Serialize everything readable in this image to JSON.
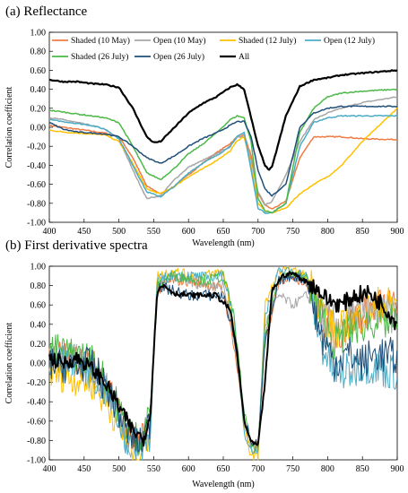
{
  "chart_data": [
    {
      "type": "line",
      "title": "(a) Reflectance",
      "xlabel": "Wavelength  (nm)",
      "ylabel": "Correlation coefficient",
      "xlim": [
        400,
        900
      ],
      "ylim": [
        -1.0,
        1.0
      ],
      "xticks": [
        "400",
        "450",
        "500",
        "550",
        "600",
        "650",
        "700",
        "750",
        "800",
        "850",
        "900"
      ],
      "yticks": [
        "1.00",
        "0.80",
        "0.60",
        "0.40",
        "0.20",
        "0.00",
        "-0.20",
        "-0.40",
        "-0.60",
        "-0.80",
        "-1.00"
      ],
      "legend_position": "top",
      "grid": false,
      "series": [
        {
          "name": "Shaded (10 May)",
          "color": "#f07b42",
          "width": 1.5,
          "x": [
            400,
            420,
            440,
            460,
            480,
            500,
            520,
            540,
            560,
            580,
            600,
            620,
            640,
            660,
            670,
            680,
            690,
            700,
            710,
            720,
            740,
            760,
            780,
            800,
            820,
            850,
            900
          ],
          "y": [
            0.02,
            0.0,
            -0.02,
            -0.04,
            -0.06,
            -0.1,
            -0.32,
            -0.62,
            -0.7,
            -0.62,
            -0.5,
            -0.38,
            -0.27,
            -0.17,
            -0.1,
            -0.08,
            -0.3,
            -0.7,
            -0.82,
            -0.86,
            -0.78,
            -0.32,
            -0.1,
            -0.1,
            -0.1,
            -0.12,
            -0.13
          ]
        },
        {
          "name": "Open (10 May)",
          "color": "#a6a6a6",
          "width": 1.5,
          "x": [
            400,
            420,
            440,
            460,
            480,
            500,
            520,
            540,
            560,
            580,
            600,
            620,
            640,
            660,
            670,
            680,
            690,
            700,
            710,
            720,
            740,
            760,
            780,
            800,
            820,
            850,
            900
          ],
          "y": [
            0.1,
            0.08,
            0.05,
            0.02,
            -0.02,
            -0.12,
            -0.45,
            -0.75,
            -0.72,
            -0.55,
            -0.42,
            -0.35,
            -0.28,
            -0.2,
            -0.1,
            -0.1,
            -0.35,
            -0.68,
            -0.82,
            -0.78,
            -0.5,
            -0.15,
            0.08,
            0.15,
            0.2,
            0.26,
            0.32
          ]
        },
        {
          "name": "Shaded (12 July)",
          "color": "#ffc000",
          "width": 1.5,
          "x": [
            400,
            420,
            440,
            460,
            480,
            500,
            520,
            540,
            560,
            580,
            600,
            620,
            640,
            660,
            670,
            680,
            690,
            700,
            710,
            720,
            740,
            760,
            780,
            800,
            820,
            850,
            900
          ],
          "y": [
            -0.03,
            -0.05,
            -0.06,
            -0.07,
            -0.08,
            -0.15,
            -0.38,
            -0.65,
            -0.7,
            -0.62,
            -0.52,
            -0.44,
            -0.35,
            -0.25,
            -0.14,
            -0.1,
            -0.4,
            -0.8,
            -0.88,
            -0.9,
            -0.85,
            -0.7,
            -0.6,
            -0.52,
            -0.4,
            -0.15,
            0.2
          ]
        },
        {
          "name": "Open (12 July)",
          "color": "#4bacc6",
          "width": 1.5,
          "x": [
            400,
            420,
            440,
            460,
            480,
            500,
            520,
            540,
            560,
            580,
            600,
            620,
            640,
            660,
            670,
            680,
            690,
            700,
            710,
            720,
            740,
            760,
            780,
            800,
            820,
            850,
            900
          ],
          "y": [
            0.08,
            0.06,
            0.04,
            0.02,
            -0.02,
            -0.12,
            -0.4,
            -0.68,
            -0.73,
            -0.62,
            -0.48,
            -0.38,
            -0.3,
            -0.2,
            -0.1,
            -0.05,
            -0.45,
            -0.85,
            -0.9,
            -0.9,
            -0.8,
            -0.2,
            0.05,
            0.1,
            0.12,
            0.12,
            0.12
          ]
        },
        {
          "name": "Shaded (26 July)",
          "color": "#4cb848",
          "width": 1.5,
          "x": [
            400,
            420,
            440,
            460,
            480,
            500,
            520,
            540,
            560,
            580,
            600,
            620,
            640,
            660,
            670,
            680,
            690,
            700,
            710,
            720,
            740,
            760,
            780,
            800,
            820,
            850,
            900
          ],
          "y": [
            0.18,
            0.16,
            0.14,
            0.12,
            0.1,
            0.05,
            -0.2,
            -0.48,
            -0.55,
            -0.43,
            -0.28,
            -0.18,
            -0.06,
            0.08,
            0.12,
            0.1,
            -0.15,
            -0.75,
            -0.88,
            -0.9,
            -0.8,
            -0.05,
            0.2,
            0.32,
            0.36,
            0.38,
            0.4
          ]
        },
        {
          "name": "Open (26 July)",
          "color": "#1f4e79",
          "width": 1.5,
          "x": [
            400,
            420,
            440,
            460,
            480,
            500,
            520,
            540,
            560,
            580,
            600,
            620,
            640,
            660,
            670,
            680,
            690,
            700,
            710,
            720,
            740,
            760,
            780,
            800,
            820,
            850,
            900
          ],
          "y": [
            0.05,
            -0.02,
            -0.05,
            -0.06,
            -0.07,
            -0.1,
            -0.2,
            -0.32,
            -0.38,
            -0.3,
            -0.2,
            -0.12,
            -0.06,
            0.02,
            0.06,
            0.06,
            -0.1,
            -0.45,
            -0.65,
            -0.72,
            -0.6,
            0.0,
            0.15,
            0.2,
            0.22,
            0.22,
            0.22
          ]
        },
        {
          "name": "All",
          "color": "#000000",
          "width": 2.2,
          "x": [
            400,
            420,
            440,
            460,
            480,
            500,
            520,
            540,
            550,
            560,
            580,
            600,
            620,
            640,
            660,
            670,
            680,
            690,
            700,
            710,
            715,
            720,
            740,
            760,
            780,
            800,
            820,
            850,
            900
          ],
          "y": [
            0.5,
            0.48,
            0.48,
            0.46,
            0.45,
            0.42,
            0.2,
            -0.1,
            -0.16,
            -0.15,
            0.0,
            0.15,
            0.25,
            0.32,
            0.42,
            0.45,
            0.4,
            0.1,
            -0.2,
            -0.4,
            -0.45,
            -0.42,
            0.12,
            0.43,
            0.5,
            0.52,
            0.55,
            0.57,
            0.6
          ]
        }
      ]
    },
    {
      "type": "line",
      "title": "(b) First derivative spectra",
      "xlabel": "Wavelength  (nm)",
      "ylabel": "Correlation  coefficient",
      "xlim": [
        400,
        900
      ],
      "ylim": [
        -1.0,
        1.0
      ],
      "xticks": [
        "400",
        "450",
        "500",
        "550",
        "600",
        "650",
        "700",
        "750",
        "800",
        "850",
        "900"
      ],
      "yticks": [
        "1.00",
        "0.80",
        "0.60",
        "0.40",
        "0.20",
        "0.00",
        "-0.20",
        "-0.40",
        "-0.60",
        "-0.80",
        "-1.00"
      ],
      "grid": false,
      "series": [
        {
          "color": "#f07b42",
          "width": 1.0,
          "x": [
            400,
            430,
            460,
            490,
            510,
            530,
            545,
            555,
            575,
            600,
            625,
            650,
            665,
            680,
            690,
            700,
            710,
            730,
            750,
            770,
            790,
            810,
            830,
            850,
            870,
            900
          ],
          "y": [
            0.1,
            0.05,
            0.0,
            -0.3,
            -0.7,
            -0.85,
            -0.6,
            0.75,
            0.85,
            0.85,
            0.82,
            0.75,
            0.2,
            -0.6,
            -0.85,
            -0.85,
            0.2,
            0.85,
            0.9,
            0.8,
            0.5,
            0.3,
            0.4,
            0.5,
            0.6,
            0.55
          ]
        },
        {
          "color": "#a6a6a6",
          "width": 1.0,
          "x": [
            400,
            430,
            460,
            490,
            510,
            530,
            545,
            555,
            575,
            600,
            625,
            650,
            665,
            680,
            690,
            700,
            710,
            730,
            750,
            770,
            790,
            810,
            830,
            850,
            870,
            900
          ],
          "y": [
            0.0,
            0.05,
            -0.05,
            -0.35,
            -0.75,
            -0.9,
            -0.5,
            0.8,
            0.9,
            0.85,
            0.8,
            0.8,
            0.3,
            -0.6,
            -0.9,
            -0.9,
            0.4,
            0.7,
            0.6,
            0.7,
            0.5,
            0.4,
            0.45,
            0.55,
            0.5,
            0.5
          ]
        },
        {
          "color": "#ffc000",
          "width": 1.0,
          "x": [
            400,
            430,
            460,
            490,
            510,
            530,
            545,
            555,
            575,
            600,
            625,
            650,
            665,
            680,
            690,
            700,
            710,
            730,
            750,
            770,
            790,
            810,
            830,
            850,
            870,
            900
          ],
          "y": [
            -0.1,
            -0.15,
            -0.2,
            -0.5,
            -0.8,
            -0.95,
            -0.7,
            0.9,
            0.95,
            0.9,
            0.9,
            0.95,
            0.4,
            -0.7,
            -0.95,
            -0.97,
            0.6,
            0.95,
            0.95,
            0.9,
            0.6,
            0.3,
            0.4,
            0.5,
            0.6,
            0.6
          ]
        },
        {
          "color": "#4bacc6",
          "width": 1.0,
          "x": [
            400,
            430,
            460,
            490,
            510,
            530,
            545,
            555,
            575,
            600,
            625,
            650,
            665,
            680,
            690,
            700,
            710,
            730,
            750,
            770,
            790,
            810,
            830,
            850,
            870,
            900
          ],
          "y": [
            -0.05,
            0.05,
            -0.1,
            -0.4,
            -0.8,
            -0.9,
            -0.75,
            0.85,
            0.9,
            0.9,
            0.88,
            0.9,
            0.5,
            -0.7,
            -0.9,
            -0.9,
            0.5,
            0.95,
            0.95,
            0.9,
            0.2,
            -0.1,
            -0.1,
            0.0,
            -0.05,
            -0.1
          ]
        },
        {
          "color": "#4cb848",
          "width": 1.0,
          "x": [
            400,
            430,
            460,
            490,
            510,
            530,
            545,
            555,
            575,
            600,
            625,
            650,
            665,
            680,
            690,
            700,
            710,
            730,
            750,
            770,
            790,
            810,
            830,
            850,
            870,
            900
          ],
          "y": [
            0.15,
            0.1,
            0.05,
            -0.3,
            -0.65,
            -0.8,
            -0.5,
            0.8,
            0.9,
            0.88,
            0.85,
            0.9,
            0.5,
            -0.5,
            -0.85,
            -0.88,
            0.3,
            0.9,
            0.92,
            0.88,
            0.5,
            0.2,
            0.35,
            0.4,
            0.45,
            0.4
          ]
        },
        {
          "color": "#1f4e79",
          "width": 1.0,
          "x": [
            400,
            430,
            460,
            490,
            510,
            530,
            545,
            555,
            575,
            600,
            625,
            650,
            665,
            680,
            690,
            700,
            710,
            730,
            750,
            770,
            790,
            810,
            830,
            850,
            870,
            900
          ],
          "y": [
            0.0,
            -0.05,
            0.0,
            -0.35,
            -0.7,
            -0.85,
            -0.6,
            0.8,
            0.75,
            0.7,
            0.7,
            0.7,
            0.3,
            -0.55,
            -0.8,
            -0.85,
            0.2,
            0.85,
            0.9,
            0.85,
            0.3,
            0.0,
            0.1,
            0.0,
            0.1,
            0.05
          ]
        },
        {
          "name": "All",
          "color": "#000000",
          "width": 2.0,
          "x": [
            400,
            420,
            440,
            460,
            480,
            500,
            520,
            535,
            545,
            555,
            565,
            580,
            600,
            620,
            640,
            660,
            670,
            680,
            690,
            700,
            710,
            720,
            735,
            750,
            760,
            780,
            800,
            820,
            840,
            860,
            880,
            900
          ],
          "y": [
            0.05,
            0.0,
            0.05,
            -0.05,
            -0.2,
            -0.45,
            -0.7,
            -0.78,
            -0.55,
            0.75,
            0.8,
            0.72,
            0.7,
            0.7,
            0.7,
            0.55,
            0.1,
            -0.6,
            -0.82,
            -0.85,
            -0.2,
            0.75,
            0.9,
            0.93,
            0.88,
            0.8,
            0.65,
            0.6,
            0.7,
            0.72,
            0.6,
            0.4
          ]
        }
      ]
    }
  ]
}
